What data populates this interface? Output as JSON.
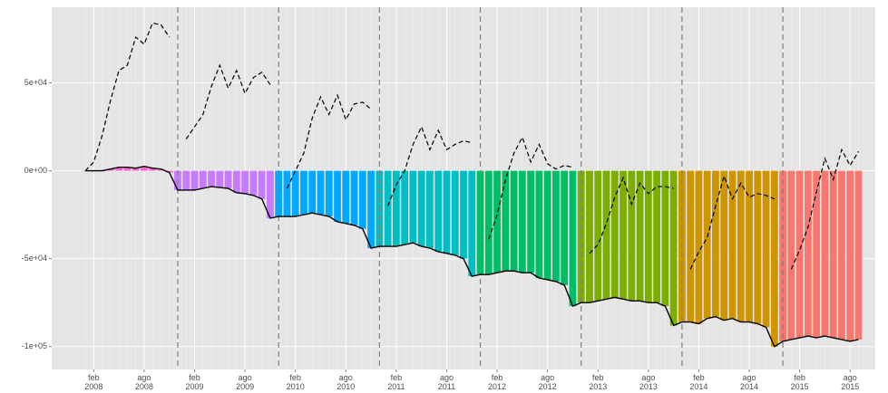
{
  "chart_data": {
    "type": "bar",
    "ylim": [
      -113000,
      93000
    ],
    "yticks": [
      {
        "value": -100000,
        "label": "-1e+05"
      },
      {
        "value": -50000,
        "label": "-5e+04"
      },
      {
        "value": 0,
        "label": "0e+00"
      },
      {
        "value": 50000,
        "label": "5e+04"
      }
    ],
    "xlim": [
      "2007-09",
      "2015-11"
    ],
    "xticks": [
      {
        "value": "2008-02",
        "label": "feb\n2008"
      },
      {
        "value": "2008-08",
        "label": "ago\n2008"
      },
      {
        "value": "2009-02",
        "label": "feb\n2009"
      },
      {
        "value": "2009-08",
        "label": "ago\n2009"
      },
      {
        "value": "2010-02",
        "label": "feb\n2010"
      },
      {
        "value": "2010-08",
        "label": "ago\n2010"
      },
      {
        "value": "2011-02",
        "label": "feb\n2011"
      },
      {
        "value": "2011-08",
        "label": "ago\n2011"
      },
      {
        "value": "2012-02",
        "label": "feb\n2012"
      },
      {
        "value": "2012-08",
        "label": "ago\n2012"
      },
      {
        "value": "2013-02",
        "label": "feb\n2013"
      },
      {
        "value": "2013-08",
        "label": "ago\n2013"
      },
      {
        "value": "2014-02",
        "label": "feb\n2014"
      },
      {
        "value": "2014-08",
        "label": "ago\n2014"
      },
      {
        "value": "2015-02",
        "label": "feb\n2015"
      },
      {
        "value": "2015-08",
        "label": "ago\n2015"
      }
    ],
    "grid": true,
    "line_color": "#000000",
    "series": [
      {
        "color": "#FF61CC",
        "x": [
          "2008-01",
          "2008-02",
          "2008-03",
          "2008-04",
          "2008-05",
          "2008-06",
          "2008-07",
          "2008-08",
          "2008-09",
          "2008-10",
          "2008-11"
        ],
        "values": [
          0,
          0,
          0,
          1000,
          2000,
          2000,
          1500,
          2500,
          1500,
          1000,
          -1000
        ],
        "dashed": [
          0,
          5000,
          20000,
          40000,
          57000,
          60000,
          76000,
          72000,
          84000,
          83000,
          76000
        ]
      },
      {
        "color": "#C77CFF",
        "x": [
          "2008-12",
          "2009-01",
          "2009-02",
          "2009-03",
          "2009-04",
          "2009-05",
          "2009-06",
          "2009-07",
          "2009-08",
          "2009-09",
          "2009-10",
          "2009-11"
        ],
        "values": [
          -11000,
          -11000,
          -11000,
          -10000,
          -9000,
          -9500,
          -10000,
          -12500,
          -13000,
          -14000,
          -16000,
          -27000
        ],
        "dashed": [
          null,
          18000,
          25000,
          32000,
          48000,
          60000,
          47000,
          57000,
          44000,
          53000,
          56000,
          49000
        ]
      },
      {
        "color": "#00A9FF",
        "x": [
          "2009-12",
          "2010-01",
          "2010-02",
          "2010-03",
          "2010-04",
          "2010-05",
          "2010-06",
          "2010-07",
          "2010-08",
          "2010-09",
          "2010-10",
          "2010-11"
        ],
        "values": [
          -26000,
          -26000,
          -26000,
          -25000,
          -24000,
          -25000,
          -26000,
          -29000,
          -30000,
          -31000,
          -33000,
          -44000
        ],
        "dashed": [
          null,
          -10000,
          0,
          10000,
          30000,
          42000,
          32000,
          43000,
          29000,
          38000,
          39000,
          35000
        ]
      },
      {
        "color": "#00BFC4",
        "x": [
          "2010-12",
          "2011-01",
          "2011-02",
          "2011-03",
          "2011-04",
          "2011-05",
          "2011-06",
          "2011-07",
          "2011-08",
          "2011-09",
          "2011-10",
          "2011-11"
        ],
        "values": [
          -43000,
          -43000,
          -43000,
          -42000,
          -41000,
          -43000,
          -44000,
          -46000,
          -47000,
          -48000,
          -50000,
          -60000
        ],
        "dashed": [
          null,
          -20000,
          -8000,
          0,
          15000,
          25000,
          12000,
          23000,
          12000,
          15000,
          17000,
          16000
        ]
      },
      {
        "color": "#00BE67",
        "x": [
          "2011-12",
          "2012-01",
          "2012-02",
          "2012-03",
          "2012-04",
          "2012-05",
          "2012-06",
          "2012-07",
          "2012-08",
          "2012-09",
          "2012-10",
          "2012-11"
        ],
        "values": [
          -59000,
          -59000,
          -58000,
          -57000,
          -57000,
          -58000,
          -58000,
          -61000,
          -62000,
          -63000,
          -65000,
          -77000
        ],
        "dashed": [
          null,
          -39000,
          -25000,
          -5000,
          10000,
          19000,
          5000,
          15000,
          4000,
          1000,
          3000,
          2000
        ]
      },
      {
        "color": "#7CAE00",
        "x": [
          "2012-12",
          "2013-01",
          "2013-02",
          "2013-03",
          "2013-04",
          "2013-05",
          "2013-06",
          "2013-07",
          "2013-08",
          "2013-09",
          "2013-10",
          "2013-11"
        ],
        "values": [
          -75000,
          -75000,
          -74000,
          -73000,
          -72000,
          -73000,
          -74000,
          -74000,
          -75000,
          -75000,
          -77000,
          -88000
        ],
        "dashed": [
          null,
          -47000,
          -42000,
          -30000,
          -15000,
          -4000,
          -19000,
          -7000,
          -13000,
          -9000,
          -9000,
          -10000
        ]
      },
      {
        "color": "#CD9600",
        "x": [
          "2013-12",
          "2014-01",
          "2014-02",
          "2014-03",
          "2014-04",
          "2014-05",
          "2014-06",
          "2014-07",
          "2014-08",
          "2014-09",
          "2014-10",
          "2014-11"
        ],
        "values": [
          -86000,
          -86000,
          -87000,
          -84000,
          -83000,
          -85000,
          -84000,
          -86000,
          -86000,
          -87000,
          -89000,
          -100000
        ],
        "dashed": [
          null,
          -56000,
          -46000,
          -38000,
          -20000,
          -3000,
          -16000,
          -7000,
          -15000,
          -13000,
          -14000,
          -16000
        ]
      },
      {
        "color": "#F8766D",
        "x": [
          "2014-12",
          "2015-01",
          "2015-02",
          "2015-03",
          "2015-04",
          "2015-05",
          "2015-06",
          "2015-07",
          "2015-08",
          "2015-09"
        ],
        "values": [
          -97000,
          -96000,
          -95000,
          -94000,
          -95000,
          -94000,
          -95000,
          -96000,
          -97000,
          -96000
        ],
        "dashed": [
          null,
          -56000,
          -45000,
          -32000,
          -12000,
          7000,
          -5000,
          12000,
          3000,
          11000
        ]
      }
    ]
  }
}
